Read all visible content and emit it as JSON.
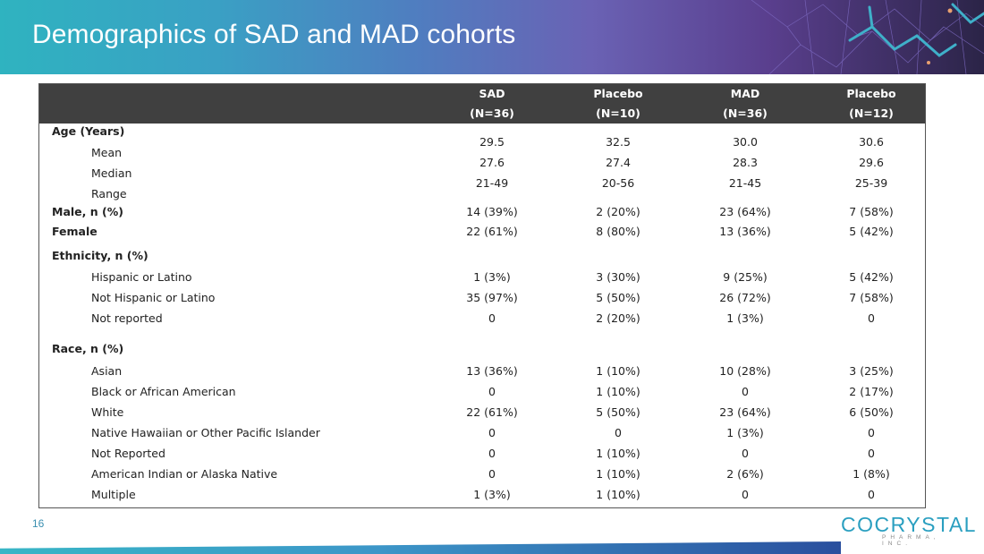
{
  "header": {
    "title": "Demographics of SAD and MAD cohorts"
  },
  "table": {
    "columns": [
      {
        "name": "SAD",
        "n": "(N=36)"
      },
      {
        "name": "Placebo",
        "n": "(N=10)"
      },
      {
        "name": "MAD",
        "n": "(N=36)"
      },
      {
        "name": "Placebo",
        "n": "(N=12)"
      }
    ],
    "age": {
      "label": "Age (Years)",
      "mean_label": "Mean",
      "median_label": "Median",
      "range_label": "Range",
      "mean": [
        "29.5",
        "32.5",
        "30.0",
        "30.6"
      ],
      "median": [
        "27.6",
        "27.4",
        "28.3",
        "29.6"
      ],
      "range": [
        "21-49",
        "20-56",
        "21-45",
        "25-39"
      ]
    },
    "male": {
      "label": "Male, n (%)",
      "values": [
        "14 (39%)",
        "2 (20%)",
        "23 (64%)",
        "7 (58%)"
      ]
    },
    "female": {
      "label": "Female",
      "values": [
        "22 (61%)",
        "8 (80%)",
        "13 (36%)",
        "5 (42%)"
      ]
    },
    "ethnicity": {
      "label": "Ethnicity, n (%)",
      "rows": [
        {
          "label": "Hispanic or Latino",
          "values": [
            "1 (3%)",
            "3 (30%)",
            "9 (25%)",
            "5 (42%)"
          ]
        },
        {
          "label": "Not Hispanic or Latino",
          "values": [
            "35 (97%)",
            "5 (50%)",
            "26 (72%)",
            "7 (58%)"
          ]
        },
        {
          "label": "Not reported",
          "values": [
            "0",
            "2 (20%)",
            "1 (3%)",
            "0"
          ]
        }
      ]
    },
    "race": {
      "label": "Race, n (%)",
      "rows": [
        {
          "label": "Asian",
          "values": [
            "13 (36%)",
            "1 (10%)",
            "10 (28%)",
            "3 (25%)"
          ]
        },
        {
          "label": "Black or African American",
          "values": [
            "0",
            "1 (10%)",
            "0",
            "2 (17%)"
          ]
        },
        {
          "label": "White",
          "values": [
            "22 (61%)",
            "5 (50%)",
            "23 (64%)",
            "6 (50%)"
          ]
        },
        {
          "label": "Native Hawaiian or Other Pacific Islander",
          "values": [
            "0",
            "0",
            "1 (3%)",
            "0"
          ]
        },
        {
          "label": "Not Reported",
          "values": [
            "0",
            "1 (10%)",
            "0",
            "0"
          ]
        },
        {
          "label": "American Indian or Alaska Native",
          "values": [
            "0",
            "1 (10%)",
            "2 (6%)",
            "1 (8%)"
          ]
        },
        {
          "label": "Multiple",
          "values": [
            "1 (3%)",
            "1 (10%)",
            "0",
            "0"
          ]
        }
      ]
    }
  },
  "footer": {
    "page_number": "16",
    "logo_text": "COCRYSTAL",
    "logo_sub": "PHARMA, INC."
  },
  "colors": {
    "header_dark": "#404040",
    "brand": "#2a9fc0"
  }
}
